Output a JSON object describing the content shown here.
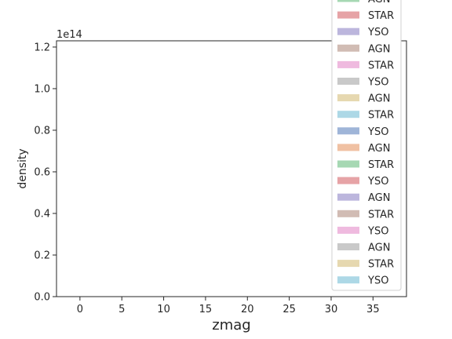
{
  "chart_data": {
    "type": "histogram",
    "xlabel": "zmag",
    "ylabel": "density",
    "y_offset_label": "1e14",
    "xlim": [
      -2.8,
      39.0
    ],
    "ylim": [
      0,
      1.23
    ],
    "x_ticks": [
      0,
      5,
      10,
      15,
      20,
      25,
      30,
      35
    ],
    "x_tick_labels": [
      "0",
      "5",
      "10",
      "15",
      "20",
      "25",
      "30",
      "35"
    ],
    "y_ticks": [
      0.0,
      0.2,
      0.4,
      0.6,
      0.8,
      1.0,
      1.2
    ],
    "y_tick_labels": [
      "0.0",
      "0.2",
      "0.4",
      "0.6",
      "0.8",
      "1.0",
      "1.2"
    ],
    "grid": false,
    "legend_placement": "top-right, extending above the axes",
    "series": [],
    "legend": [
      {
        "label": "AGN",
        "color": "#a6d8b3"
      },
      {
        "label": "STAR",
        "color": "#e6a3a6"
      },
      {
        "label": "YSO",
        "color": "#bcb6dd"
      },
      {
        "label": "AGN",
        "color": "#d1bcb4"
      },
      {
        "label": "STAR",
        "color": "#efbadf"
      },
      {
        "label": "YSO",
        "color": "#c9c9c9"
      },
      {
        "label": "AGN",
        "color": "#e6d8b0"
      },
      {
        "label": "STAR",
        "color": "#add8e6"
      },
      {
        "label": "YSO",
        "color": "#9fb5d8"
      },
      {
        "label": "AGN",
        "color": "#f0c1a3"
      },
      {
        "label": "STAR",
        "color": "#a6d8b3"
      },
      {
        "label": "YSO",
        "color": "#e6a3a6"
      },
      {
        "label": "AGN",
        "color": "#bcb6dd"
      },
      {
        "label": "STAR",
        "color": "#d1bcb4"
      },
      {
        "label": "YSO",
        "color": "#efbadf"
      },
      {
        "label": "AGN",
        "color": "#c9c9c9"
      },
      {
        "label": "STAR",
        "color": "#e6d8b0"
      },
      {
        "label": "YSO",
        "color": "#add8e6"
      }
    ]
  }
}
